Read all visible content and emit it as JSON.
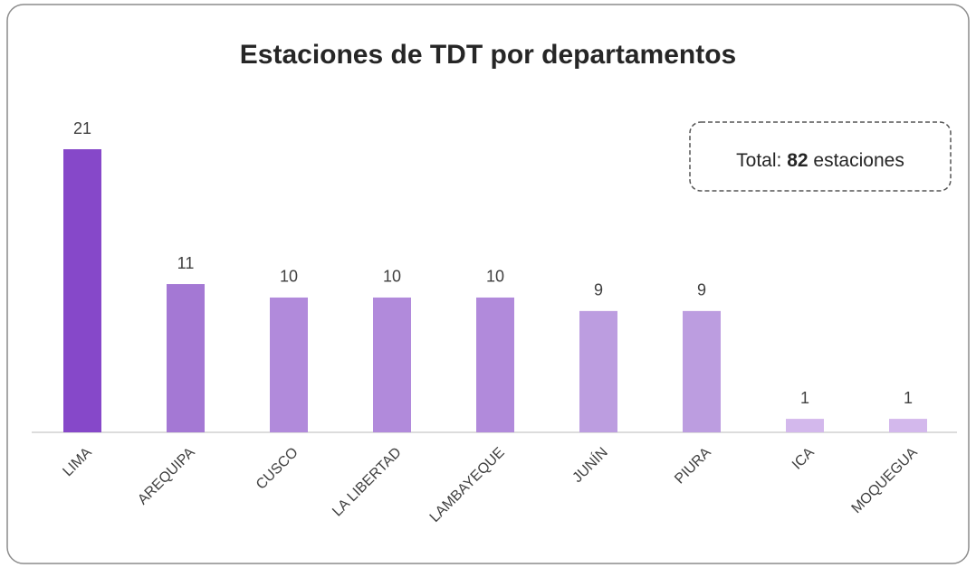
{
  "chart_data": {
    "type": "bar",
    "title": "Estaciones de TDT por departamentos",
    "categories": [
      "LIMA",
      "AREQUIPA",
      "CUSCO",
      "LA LIBERTAD",
      "LAMBAYEQUE",
      "JUNÍN",
      "PIURA",
      "ICA",
      "MOQUEGUA"
    ],
    "values": [
      21,
      11,
      10,
      10,
      10,
      9,
      9,
      1,
      1
    ],
    "colors": [
      "#8648c9",
      "#a478d4",
      "#b18adb",
      "#b18adb",
      "#b18adb",
      "#bc9de0",
      "#bc9de0",
      "#d3b8ec",
      "#d3b8ec"
    ],
    "annotation": {
      "prefix": "Total:",
      "value": 82,
      "suffix": "estaciones"
    }
  }
}
